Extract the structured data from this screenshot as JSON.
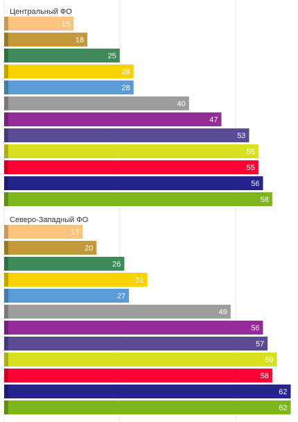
{
  "chart_data": {
    "type": "bar",
    "orientation": "horizontal",
    "grid": true,
    "xlim": [
      0,
      62
    ],
    "colors": [
      "#fbc47e",
      "#c2993a",
      "#3f8a5a",
      "#f6d200",
      "#5b9bd5",
      "#9d9d9d",
      "#952d98",
      "#5a4b95",
      "#d9e021",
      "#ff0033",
      "#25238c",
      "#7cb51d"
    ],
    "groups": [
      {
        "title": "Центральный ФО",
        "values": [
          15,
          18,
          25,
          28,
          28,
          40,
          47,
          53,
          55,
          55,
          56,
          58
        ]
      },
      {
        "title": "Северо-Западный ФО",
        "values": [
          17,
          20,
          26,
          31,
          27,
          49,
          56,
          57,
          59,
          58,
          62,
          62
        ]
      }
    ]
  }
}
